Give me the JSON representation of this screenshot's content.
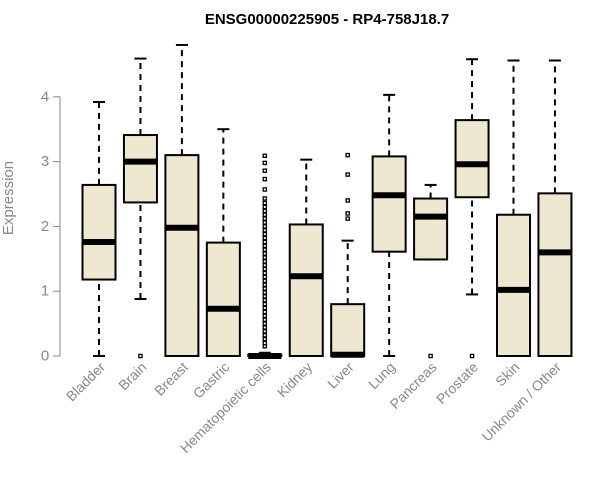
{
  "chart_data": {
    "type": "boxplot",
    "title": "ENSG00000225905 - RP4-758J18.7",
    "xlabel": "",
    "ylabel": "Expression",
    "ylim": [
      0,
      4.8
    ],
    "yticks": [
      0,
      1,
      2,
      3,
      4
    ],
    "box_color": "#EFE8D0",
    "categories": [
      "Bladder",
      "Brain",
      "Breast",
      "Gastric",
      "Hematopoietic cells",
      "Kidney",
      "Liver",
      "Lung",
      "Pancreas",
      "Prostate",
      "Skin",
      "Unknown / Other"
    ],
    "boxes": [
      {
        "name": "Bladder",
        "min": 0,
        "q1": 1.18,
        "median": 1.76,
        "q3": 2.64,
        "max": 3.92,
        "outliers": []
      },
      {
        "name": "Brain",
        "min": 0.88,
        "q1": 2.37,
        "median": 3.0,
        "q3": 3.41,
        "max": 4.59,
        "outliers": [
          0
        ]
      },
      {
        "name": "Breast",
        "min": 0,
        "q1": 0,
        "median": 1.98,
        "q3": 3.1,
        "max": 4.8,
        "outliers": []
      },
      {
        "name": "Gastric",
        "min": 0,
        "q1": 0,
        "median": 0.73,
        "q3": 1.75,
        "max": 3.5,
        "outliers": []
      },
      {
        "name": "Hematopoietic cells",
        "min": 0,
        "q1": 0,
        "median": 0,
        "q3": 0.02,
        "max": 0.05,
        "outliers": [
          0.15,
          0.2,
          0.26,
          0.32,
          0.38,
          0.44,
          0.5,
          0.56,
          0.62,
          0.68,
          0.74,
          0.8,
          0.86,
          0.92,
          0.98,
          1.04,
          1.1,
          1.16,
          1.22,
          1.28,
          1.34,
          1.4,
          1.46,
          1.52,
          1.58,
          1.64,
          1.7,
          1.76,
          1.82,
          1.88,
          1.94,
          2.0,
          2.06,
          2.12,
          2.18,
          2.24,
          2.3,
          2.36,
          2.43,
          2.57,
          2.73,
          2.86,
          2.98,
          3.09
        ]
      },
      {
        "name": "Kidney",
        "min": 0,
        "q1": 0,
        "median": 1.23,
        "q3": 2.03,
        "max": 3.03,
        "outliers": []
      },
      {
        "name": "Liver",
        "min": 0,
        "q1": 0,
        "median": 0.02,
        "q3": 0.8,
        "max": 1.78,
        "outliers": [
          2.12,
          2.2,
          2.4,
          2.8,
          3.1
        ]
      },
      {
        "name": "Lung",
        "min": 0,
        "q1": 1.61,
        "median": 2.48,
        "q3": 3.08,
        "max": 4.03,
        "outliers": []
      },
      {
        "name": "Pancreas",
        "min": 1.49,
        "q1": 1.49,
        "median": 2.15,
        "q3": 2.43,
        "max": 2.64,
        "outliers": [
          0
        ]
      },
      {
        "name": "Prostate",
        "min": 0.95,
        "q1": 2.45,
        "median": 2.96,
        "q3": 3.64,
        "max": 4.58,
        "outliers": [
          0
        ]
      },
      {
        "name": "Skin",
        "min": 0,
        "q1": 0,
        "median": 1.02,
        "q3": 2.18,
        "max": 4.56,
        "outliers": []
      },
      {
        "name": "Unknown / Other",
        "min": 0,
        "q1": 0,
        "median": 1.6,
        "q3": 2.51,
        "max": 4.56,
        "outliers": []
      }
    ]
  }
}
